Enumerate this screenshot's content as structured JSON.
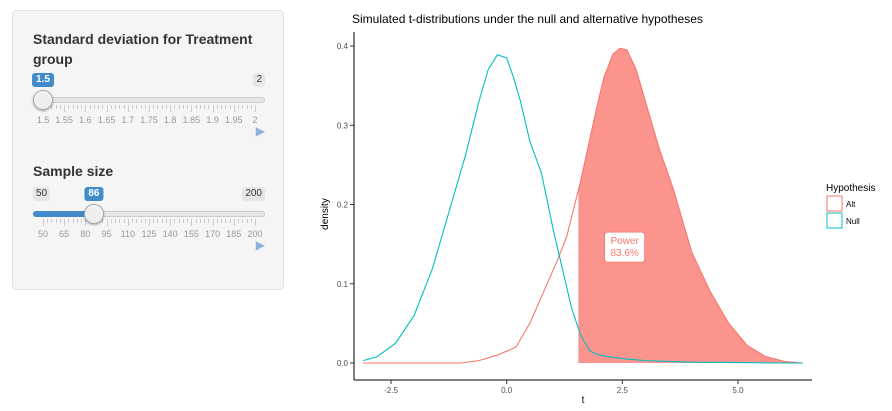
{
  "sidebar": {
    "sd_slider": {
      "label": "Standard deviation for Treatment group",
      "label_line1": "Standard deviation for Treatment",
      "label_line2": "group",
      "min": "1.5",
      "max": "2",
      "value": "1.5",
      "value_fraction": 0,
      "tick_labels": [
        "1.5",
        "1.55",
        "1.6",
        "1.65",
        "1.7",
        "1.75",
        "1.8",
        "1.85",
        "1.9",
        "1.95",
        "2"
      ],
      "play_icon": "play-icon"
    },
    "n_slider": {
      "label": "Sample size",
      "min": "50",
      "max": "200",
      "value": "86",
      "value_fraction": 0.24,
      "tick_labels": [
        "50",
        "65",
        "80",
        "95",
        "110",
        "125",
        "140",
        "155",
        "170",
        "185",
        "200"
      ],
      "play_icon": "play-icon"
    }
  },
  "chart_data": {
    "type": "area",
    "title": "Simulated t-distributions under the null and alternative hypotheses",
    "xlabel": "t",
    "ylabel": "density",
    "xlim": [
      -3.3,
      6.6
    ],
    "ylim": [
      0,
      0.4
    ],
    "x_ticks": [
      -2.5,
      0.0,
      2.5,
      5.0
    ],
    "x_tick_labels": [
      "-2.5",
      "0.0",
      "2.5",
      "5.0"
    ],
    "y_ticks": [
      0.0,
      0.1,
      0.2,
      0.3,
      0.4
    ],
    "y_tick_labels": [
      "0.0",
      "0.1",
      "0.2",
      "0.3",
      "0.4"
    ],
    "grid": false,
    "legend": {
      "title": "Hypothesis",
      "placement": "right",
      "entries": [
        "Alt",
        "Null"
      ]
    },
    "critical_value": 1.55,
    "annotation": {
      "line1": "Power",
      "line2": "83.6%",
      "x": 2.55,
      "y": 0.15
    },
    "colors": {
      "alt": "#F8766D",
      "null": "#00BFC4",
      "fill": "#F8766D"
    },
    "series": [
      {
        "name": "Null",
        "x": [
          -3.1,
          -2.8,
          -2.4,
          -2.0,
          -1.6,
          -1.2,
          -0.9,
          -0.6,
          -0.4,
          -0.2,
          0.0,
          0.15,
          0.3,
          0.5,
          0.75,
          1.0,
          1.2,
          1.4,
          1.6,
          1.8,
          2.0,
          2.3,
          2.6,
          3.0,
          3.5,
          4.0,
          5.0,
          6.0,
          6.4
        ],
        "y": [
          0.003,
          0.008,
          0.025,
          0.06,
          0.12,
          0.2,
          0.26,
          0.33,
          0.37,
          0.389,
          0.385,
          0.36,
          0.33,
          0.28,
          0.24,
          0.17,
          0.12,
          0.07,
          0.035,
          0.015,
          0.01,
          0.007,
          0.005,
          0.003,
          0.002,
          0.001,
          0.0005,
          0.0,
          0.0
        ]
      },
      {
        "name": "Alt",
        "x": [
          -3.1,
          -2.0,
          -1.0,
          -0.6,
          -0.2,
          0.2,
          0.5,
          0.8,
          1.1,
          1.3,
          1.6,
          1.9,
          2.1,
          2.3,
          2.45,
          2.6,
          2.8,
          3.0,
          3.3,
          3.6,
          4.0,
          4.4,
          4.8,
          5.2,
          5.6,
          6.0,
          6.4
        ],
        "y": [
          0.0,
          0.0,
          0.0,
          0.003,
          0.01,
          0.02,
          0.05,
          0.09,
          0.13,
          0.16,
          0.23,
          0.31,
          0.36,
          0.39,
          0.397,
          0.395,
          0.37,
          0.33,
          0.27,
          0.22,
          0.14,
          0.09,
          0.05,
          0.022,
          0.008,
          0.002,
          0.0
        ]
      }
    ]
  }
}
